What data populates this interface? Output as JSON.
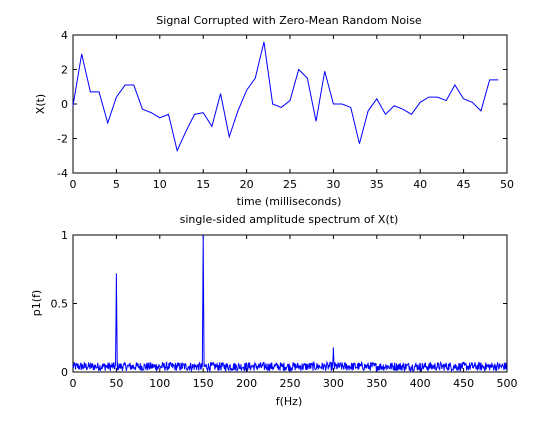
{
  "chart_data": [
    {
      "type": "line",
      "title": "Signal Corrupted with Zero-Mean Random Noise",
      "xlabel": "time (milliseconds)",
      "ylabel": "X(t)",
      "xlim": [
        0,
        50
      ],
      "ylim": [
        -4,
        4
      ],
      "xticks": [
        0,
        5,
        10,
        15,
        20,
        25,
        30,
        35,
        40,
        45,
        50
      ],
      "yticks": [
        -4,
        -2,
        0,
        2,
        4
      ],
      "grid": false,
      "line_color": "#0000ff",
      "series": [
        {
          "x": [
            0,
            1,
            2,
            3,
            4,
            5,
            6,
            7,
            8,
            9,
            10,
            11,
            12,
            13,
            14,
            15,
            16,
            17,
            18,
            19,
            20,
            21,
            22,
            23,
            24,
            25,
            26,
            27,
            28,
            29,
            30,
            31,
            32,
            33,
            34,
            35,
            36,
            37,
            38,
            39,
            40,
            41,
            42,
            43,
            44,
            45,
            46,
            47,
            48,
            49
          ],
          "values": [
            -0.1,
            2.9,
            0.7,
            0.7,
            -1.1,
            0.4,
            1.1,
            1.1,
            -0.3,
            -0.5,
            -0.8,
            -0.6,
            -2.7,
            -1.6,
            -0.6,
            -0.5,
            -1.3,
            0.6,
            -1.9,
            -0.4,
            0.8,
            1.5,
            3.6,
            0.0,
            -0.2,
            0.2,
            2.0,
            1.5,
            -1.0,
            1.9,
            0.0,
            0.0,
            -0.2,
            -2.3,
            -0.4,
            0.3,
            -0.6,
            -0.1,
            -0.3,
            -0.6,
            0.1,
            0.4,
            0.4,
            0.2,
            1.1,
            0.3,
            0.1,
            -0.4,
            1.4,
            1.4
          ]
        }
      ]
    },
    {
      "type": "line",
      "title": "single-sided amplitude spectrum of X(t)",
      "xlabel": "f(Hz)",
      "ylabel": "p1(f)",
      "xlim": [
        0,
        500
      ],
      "ylim": [
        0,
        1
      ],
      "xticks": [
        0,
        50,
        100,
        150,
        200,
        250,
        300,
        350,
        400,
        450,
        500
      ],
      "yticks": [
        0,
        0.5,
        1
      ],
      "grid": false,
      "line_color": "#0000ff",
      "noise_floor_level": 0.04,
      "peaks": [
        {
          "x": 50,
          "y": 0.72
        },
        {
          "x": 150,
          "y": 1.0
        },
        {
          "x": 300,
          "y": 0.18
        }
      ]
    }
  ]
}
